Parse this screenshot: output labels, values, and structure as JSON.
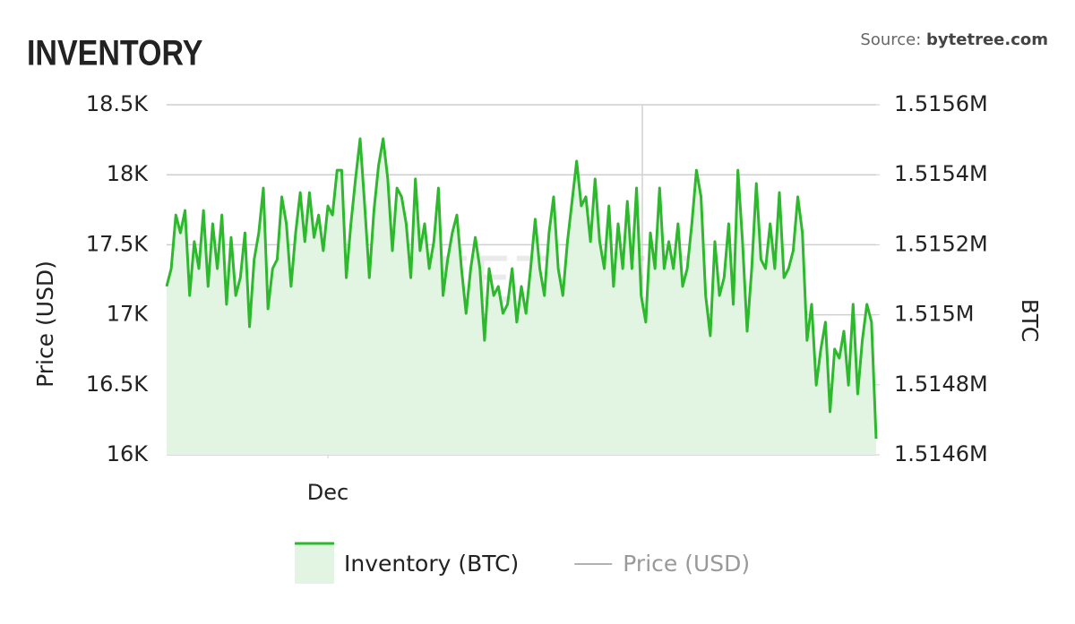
{
  "chart_data": {
    "type": "line",
    "title": "INVENTORY",
    "source_label": "Source:",
    "source_site": "bytetree.com",
    "watermark": "BYTETREE",
    "y_label": "Price (USD)",
    "y2_label": "BTC",
    "xlim": [
      0,
      154
    ],
    "xticks": [
      {
        "value": 35,
        "label": "Dec"
      }
    ],
    "ylim": [
      16000,
      18500
    ],
    "yticks": [
      {
        "value": 16000,
        "label": "16K"
      },
      {
        "value": 16500,
        "label": "16.5K"
      },
      {
        "value": 17000,
        "label": "17K"
      },
      {
        "value": 17500,
        "label": "17.5K"
      },
      {
        "value": 18000,
        "label": "18K"
      },
      {
        "value": 18500,
        "label": "18.5K"
      }
    ],
    "y2lim": [
      1514600,
      1515600
    ],
    "y2ticks": [
      {
        "value": 1514600,
        "label": "1.5146M"
      },
      {
        "value": 1514800,
        "label": "1.5148M"
      },
      {
        "value": 1515000,
        "label": "1.515M"
      },
      {
        "value": 1515200,
        "label": "1.5152M"
      },
      {
        "value": 1515400,
        "label": "1.5154M"
      },
      {
        "value": 1515600,
        "label": "1.5156M"
      }
    ],
    "grid": true,
    "series": [
      {
        "name": "Inventory (BTC)",
        "color": "#2eb82e",
        "fill_color": "#e2f5e2",
        "axis": "y2",
        "visible": true,
        "values": [
          1515081,
          1515132,
          1515285,
          1515234,
          1515298,
          1515055,
          1515209,
          1515132,
          1515298,
          1515081,
          1515260,
          1515132,
          1515285,
          1515030,
          1515221,
          1515055,
          1515106,
          1515234,
          1514966,
          1515158,
          1515234,
          1515362,
          1515017,
          1515132,
          1515158,
          1515337,
          1515260,
          1515081,
          1515234,
          1515349,
          1515209,
          1515349,
          1515221,
          1515285,
          1515183,
          1515311,
          1515285,
          1515413,
          1515413,
          1515106,
          1515260,
          1515388,
          1515503,
          1515311,
          1515106,
          1515298,
          1515426,
          1515503,
          1515388,
          1515183,
          1515362,
          1515337,
          1515260,
          1515106,
          1515388,
          1515183,
          1515260,
          1515132,
          1515209,
          1515362,
          1515055,
          1515158,
          1515234,
          1515285,
          1515132,
          1515004,
          1515132,
          1515221,
          1515132,
          1514927,
          1515132,
          1515055,
          1515081,
          1515004,
          1515030,
          1515132,
          1514979,
          1515081,
          1515004,
          1515132,
          1515273,
          1515132,
          1515055,
          1515234,
          1515337,
          1515132,
          1515055,
          1515209,
          1515324,
          1515439,
          1515311,
          1515337,
          1515209,
          1515388,
          1515209,
          1515132,
          1515311,
          1515081,
          1515260,
          1515132,
          1515324,
          1515132,
          1515362,
          1515055,
          1514979,
          1515234,
          1515132,
          1515362,
          1515132,
          1515209,
          1515132,
          1515260,
          1515081,
          1515132,
          1515260,
          1515413,
          1515337,
          1515055,
          1514940,
          1515209,
          1515055,
          1515106,
          1515260,
          1515030,
          1515413,
          1515209,
          1514953,
          1515132,
          1515375,
          1515158,
          1515132,
          1515260,
          1515132,
          1515349,
          1515106,
          1515132,
          1515183,
          1515337,
          1515234,
          1514927,
          1515030,
          1514799,
          1514902,
          1514979,
          1514723,
          1514902,
          1514876,
          1514953,
          1514799,
          1515030,
          1514774,
          1514927,
          1515030,
          1514979,
          1514646
        ]
      },
      {
        "name": "Price (USD)",
        "color": "#999999",
        "visible": false
      }
    ]
  }
}
